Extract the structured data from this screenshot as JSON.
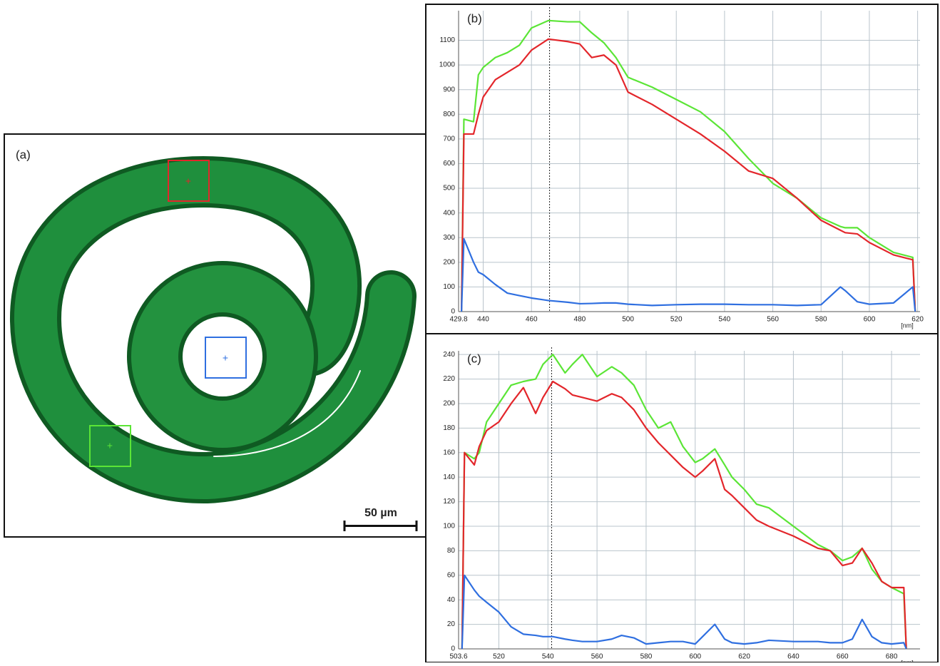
{
  "image_panel": {
    "label": "(a)",
    "scale_bar": "50 µm"
  },
  "chart_data": [
    {
      "type": "line",
      "title": "(b)",
      "x_label": "[nm]",
      "x": [
        431,
        432,
        436,
        438,
        440,
        445,
        450,
        455,
        460,
        467,
        475,
        480,
        485,
        490,
        495,
        500,
        510,
        520,
        530,
        540,
        550,
        560,
        570,
        580,
        588,
        590,
        595,
        600,
        610,
        618,
        619
      ],
      "series": [
        {
          "color": "#5be536",
          "values": [
            0,
            780,
            770,
            960,
            990,
            1030,
            1050,
            1080,
            1150,
            1180,
            1175,
            1175,
            1130,
            1090,
            1030,
            950,
            910,
            860,
            810,
            730,
            620,
            520,
            460,
            380,
            345,
            340,
            340,
            300,
            240,
            220,
            0
          ]
        },
        {
          "color": "#e3262b",
          "values": [
            0,
            720,
            720,
            800,
            870,
            940,
            970,
            1000,
            1060,
            1105,
            1095,
            1085,
            1030,
            1040,
            1000,
            890,
            840,
            780,
            720,
            650,
            570,
            540,
            460,
            370,
            330,
            320,
            315,
            280,
            230,
            210,
            0
          ]
        },
        {
          "color": "#2f6fe0",
          "values": [
            0,
            295,
            200,
            160,
            150,
            110,
            75,
            65,
            55,
            45,
            38,
            32,
            33,
            35,
            35,
            30,
            25,
            28,
            30,
            30,
            28,
            28,
            25,
            28,
            100,
            85,
            40,
            30,
            35,
            100,
            0
          ]
        }
      ],
      "marker_x": 467.5,
      "xlim": [
        429.8,
        621
      ],
      "ylim": [
        0,
        1220
      ],
      "xticks": [
        429.8,
        440,
        460,
        480,
        500,
        520,
        540,
        560,
        580,
        600,
        620
      ],
      "yticks": [
        0,
        100,
        200,
        300,
        400,
        500,
        600,
        700,
        800,
        900,
        1000,
        1100
      ],
      "grid": true
    },
    {
      "type": "line",
      "title": "(c)",
      "x_label": "[nm]",
      "x": [
        505,
        506,
        510,
        512,
        515,
        520,
        525,
        530,
        535,
        538,
        542,
        547,
        550,
        554,
        560,
        566,
        570,
        575,
        580,
        585,
        590,
        595,
        600,
        603,
        608,
        612,
        615,
        620,
        625,
        630,
        640,
        650,
        655,
        660,
        664,
        668,
        672,
        676,
        680,
        685,
        686
      ],
      "series": [
        {
          "color": "#5be536",
          "values": [
            0,
            160,
            155,
            160,
            185,
            200,
            215,
            218,
            220,
            232,
            240,
            225,
            232,
            240,
            222,
            230,
            225,
            215,
            195,
            180,
            185,
            165,
            152,
            155,
            163,
            150,
            140,
            130,
            118,
            115,
            100,
            85,
            80,
            72,
            75,
            82,
            65,
            55,
            50,
            45,
            0
          ]
        },
        {
          "color": "#e3262b",
          "values": [
            0,
            160,
            150,
            165,
            178,
            185,
            200,
            213,
            192,
            205,
            218,
            212,
            207,
            205,
            202,
            208,
            205,
            195,
            180,
            168,
            158,
            148,
            140,
            145,
            155,
            130,
            125,
            115,
            105,
            100,
            92,
            82,
            80,
            68,
            70,
            82,
            70,
            55,
            50,
            50,
            0
          ]
        },
        {
          "color": "#2f6fe0",
          "values": [
            0,
            60,
            48,
            43,
            38,
            30,
            18,
            12,
            11,
            10,
            10,
            8,
            7,
            6,
            6,
            8,
            11,
            9,
            4,
            5,
            6,
            6,
            4,
            10,
            20,
            8,
            5,
            4,
            5,
            7,
            6,
            6,
            5,
            5,
            8,
            24,
            10,
            5,
            4,
            5,
            0
          ]
        }
      ],
      "marker_x": 541.5,
      "xlim": [
        503.6,
        691.6
      ],
      "ylim": [
        0,
        243
      ],
      "xticks": [
        503.6,
        520,
        540,
        560,
        580,
        600,
        620,
        640,
        660,
        680
      ],
      "yticks": [
        0,
        20,
        40,
        60,
        80,
        100,
        120,
        140,
        160,
        180,
        200,
        220,
        240
      ],
      "grid": true
    }
  ]
}
